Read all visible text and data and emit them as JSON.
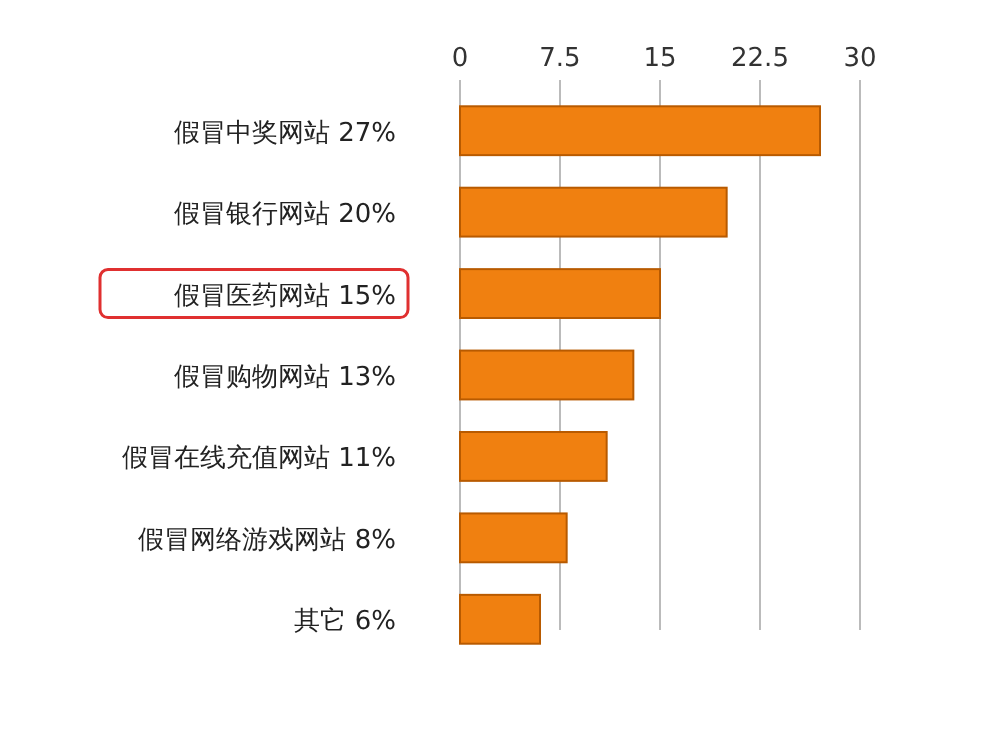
{
  "chart_data": {
    "type": "bar",
    "orientation": "horizontal",
    "categories": [
      "假冒中奖网站 27%",
      "假冒银行网站 20%",
      "假冒医药网站 15%",
      "假冒购物网站 13%",
      "假冒在线充值网站 11%",
      "假冒网络游戏网站 8%",
      "其它 6%"
    ],
    "values": [
      27,
      20,
      15,
      13,
      11,
      8,
      6
    ],
    "color": "#f08010",
    "xlim": [
      0,
      30
    ],
    "xticks": [
      0,
      7.5,
      15,
      22.5,
      30
    ],
    "grid": "x"
  }
}
